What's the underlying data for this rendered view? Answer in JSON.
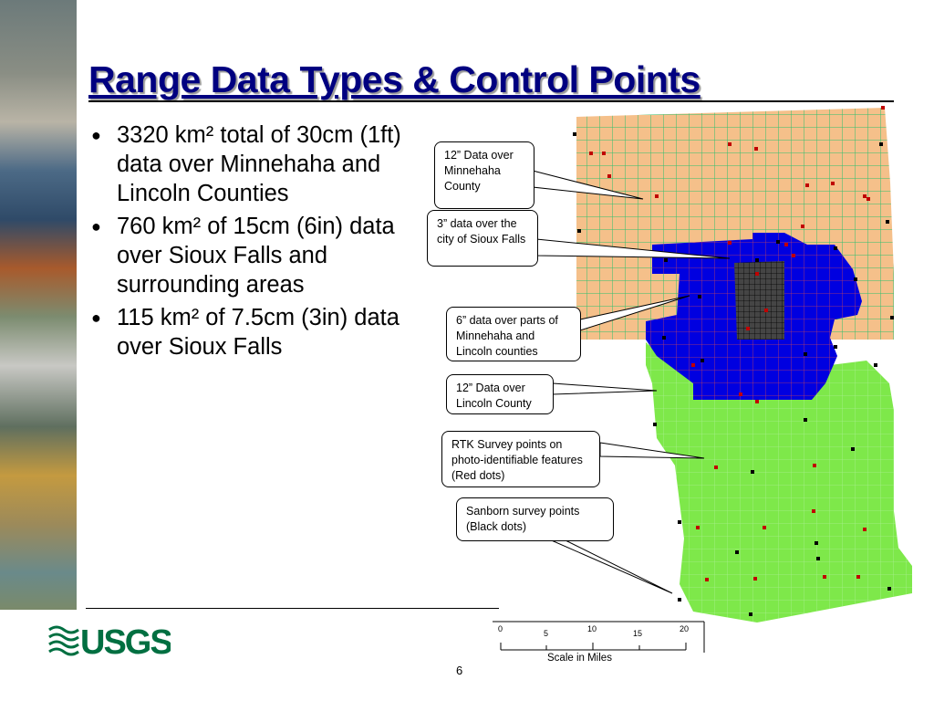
{
  "slide": {
    "title": "Range Data Types & Control Points",
    "page_number": "6",
    "bullets": [
      "3320 km² total of 30cm (1ft) data over Minnehaha and Lincoln Counties",
      "760 km²  of 15cm (6in) data over Sioux Falls and surrounding areas",
      "115 km² of 7.5cm (3in) data over Sioux Falls"
    ],
    "logo_text": "USGS"
  },
  "map": {
    "callouts": [
      "12” Data over Minnehaha County",
      "3” data over the city of Sioux Falls",
      "6” data over parts of Minnehaha and Lincoln counties",
      "12” Data over Lincoln County",
      "RTK Survey points on photo-identifiable features (Red dots)",
      "Sanborn survey points (Black dots)"
    ],
    "scale": {
      "label": "Scale in Miles",
      "ticks": [
        "0",
        "5",
        "10",
        "15",
        "20"
      ]
    },
    "colors": {
      "minnehaha_12in": "#f5c08a",
      "area_6in": "#0000e0",
      "area_3in": "#404040",
      "lincoln_12in": "#7ee84a",
      "rtk_points": "#c00000",
      "sanborn_points": "#000000",
      "title": "#000080",
      "usgs": "#006f41"
    }
  }
}
